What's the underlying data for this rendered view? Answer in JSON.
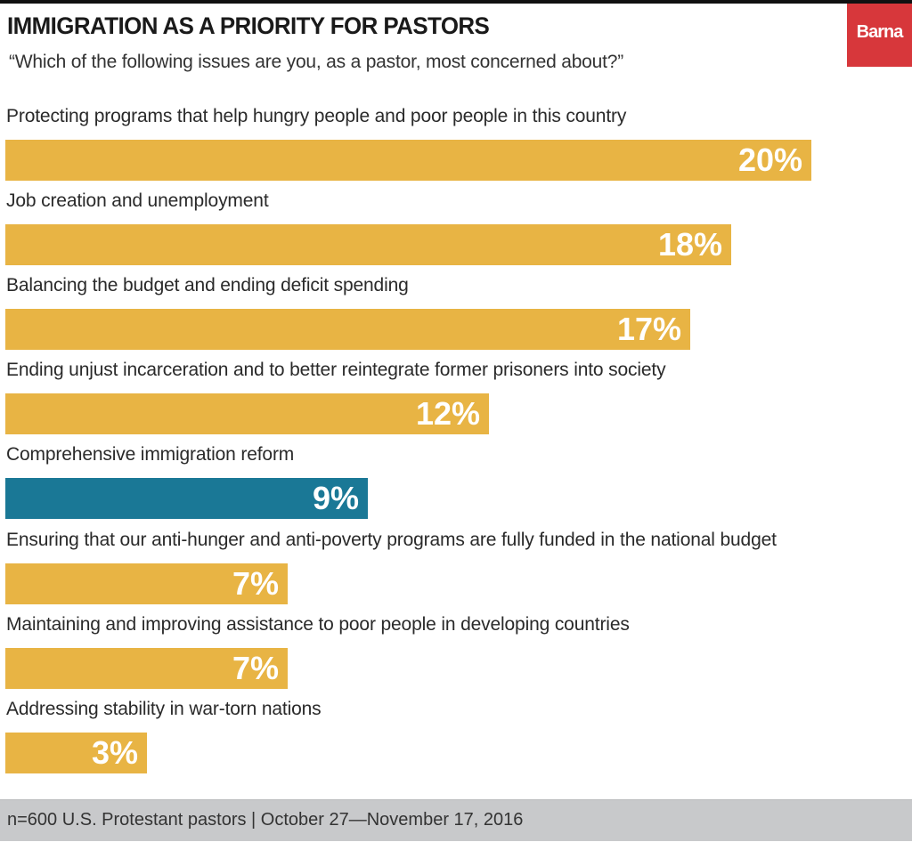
{
  "header": {
    "title": "IMMIGRATION AS A PRIORITY FOR PASTORS",
    "subtitle": "“Which of the following issues are you, as a pastor, most concerned about?”",
    "logo_text": "Barna",
    "logo_color": "#d7373b"
  },
  "colors": {
    "default_bar": "#e8b444",
    "highlight_bar": "#1a7896"
  },
  "chart_data": {
    "type": "bar",
    "orientation": "horizontal",
    "title": "IMMIGRATION AS A PRIORITY FOR PASTORS",
    "subtitle": "“Which of the following issues are you, as a pastor, most concerned about?”",
    "xlabel": "",
    "ylabel": "",
    "unit": "%",
    "grid": false,
    "xlim": [
      0,
      20
    ],
    "categories": [
      "Protecting programs that help hungry people and poor people in this country",
      "Job creation and unemployment",
      "Balancing the budget and ending deficit spending",
      "Ending unjust incarceration and to better reintegrate former prisoners into society",
      "Comprehensive immigration reform",
      "Ensuring that our anti-hunger and anti-poverty programs are fully funded in the national budget",
      "Maintaining and improving assistance to poor people in developing countries",
      "Addressing stability in war-torn nations"
    ],
    "values": [
      20,
      18,
      17,
      12,
      9,
      7,
      7,
      3
    ],
    "value_labels": [
      "20%",
      "18%",
      "17%",
      "12%",
      "9%",
      "7%",
      "7%",
      "3%"
    ],
    "highlighted": [
      false,
      false,
      false,
      false,
      true,
      false,
      false,
      false
    ]
  },
  "footer": {
    "note": "n=600 U.S. Protestant pastors | October 27—November 17, 2016"
  }
}
